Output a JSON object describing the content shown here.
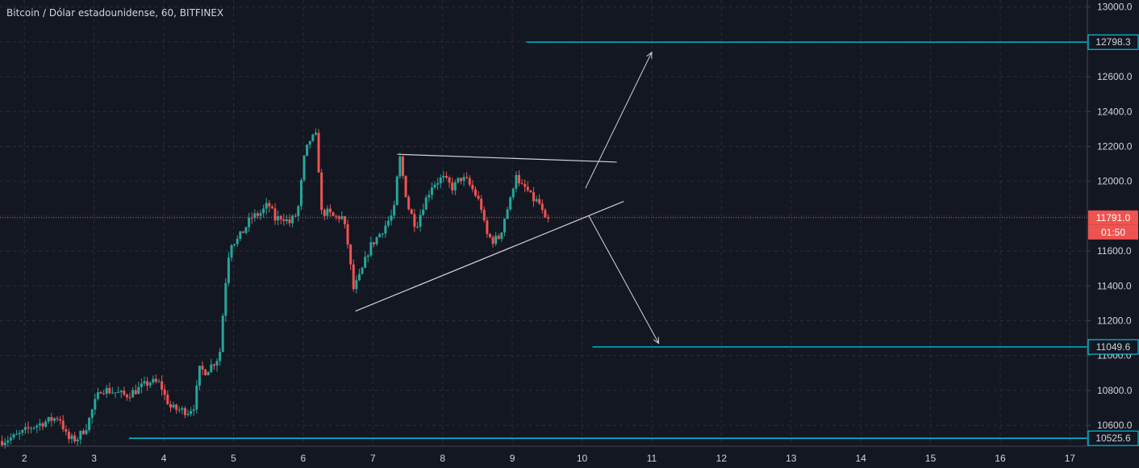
{
  "header": {
    "title": "Bitcoin / Dólar estadounidense, 60, BITFINEX"
  },
  "colors": {
    "background": "#131722",
    "grid": "#2a2e39",
    "axis_text": "#d1d4dc",
    "up": "#26a69a",
    "down": "#ef5350",
    "level_line": "#00e5ff",
    "trend_line": "#d1d4dc",
    "last_price_bg": "#ef5350"
  },
  "chart_data": {
    "type": "candlestick",
    "symbol": "Bitcoin / Dólar estadounidense",
    "interval": "60",
    "exchange": "BITFINEX",
    "ylim": [
      10480,
      13040
    ],
    "xlim": [
      1.65,
      17.25
    ],
    "x_ticks": [
      "2",
      "3",
      "4",
      "5",
      "6",
      "7",
      "8",
      "9",
      "10",
      "11",
      "12",
      "13",
      "14",
      "15",
      "16",
      "17"
    ],
    "y_ticks": [
      10600,
      10800,
      11000,
      11200,
      11400,
      11600,
      11800,
      12000,
      12200,
      12400,
      12600,
      12800,
      13000
    ],
    "y_tick_labels": [
      "10600.0",
      "10800.0",
      "11000.0",
      "11200.0",
      "11400.0",
      "11600.0",
      "11800.0",
      "12000.0",
      "12200.0",
      "12400.0",
      "12600.0",
      "12800.0",
      "13000.0"
    ],
    "grid": true,
    "last_price": 11791.0,
    "last_price_label": "11791.0",
    "countdown_label": "01:50",
    "horizontal_levels": [
      {
        "value": 12798.3,
        "label": "12798.3",
        "x_start": 9.2
      },
      {
        "value": 11049.6,
        "label": "11049.6",
        "x_start": 10.15
      },
      {
        "value": 10525.6,
        "label": "10525.6",
        "x_start": 3.5
      }
    ],
    "trend_lines": [
      {
        "from": [
          7.35,
          12155
        ],
        "to": [
          10.5,
          12110
        ]
      },
      {
        "from": [
          6.75,
          11255
        ],
        "to": [
          10.6,
          11885
        ]
      }
    ],
    "arrows": [
      {
        "from": [
          10.05,
          11960
        ],
        "to": [
          11.0,
          12740
        ]
      },
      {
        "from": [
          10.1,
          11800
        ],
        "to": [
          11.1,
          11070
        ]
      }
    ],
    "candle_path": [
      [
        1.68,
        10510
      ],
      [
        1.9,
        10540
      ],
      [
        2.1,
        10590
      ],
      [
        2.3,
        10620
      ],
      [
        2.5,
        10650
      ],
      [
        2.62,
        10520
      ],
      [
        2.75,
        10520
      ],
      [
        2.9,
        10600
      ],
      [
        3.0,
        10720
      ],
      [
        3.1,
        10810
      ],
      [
        3.3,
        10790
      ],
      [
        3.45,
        10770
      ],
      [
        3.6,
        10800
      ],
      [
        3.8,
        10850
      ],
      [
        3.95,
        10840
      ],
      [
        4.0,
        10780
      ],
      [
        4.1,
        10700
      ],
      [
        4.2,
        10690
      ],
      [
        4.35,
        10680
      ],
      [
        4.45,
        10720
      ],
      [
        4.5,
        10920
      ],
      [
        4.6,
        10910
      ],
      [
        4.72,
        10960
      ],
      [
        4.8,
        11000
      ],
      [
        4.88,
        11400
      ],
      [
        4.95,
        11650
      ],
      [
        5.05,
        11660
      ],
      [
        5.15,
        11720
      ],
      [
        5.25,
        11790
      ],
      [
        5.4,
        11820
      ],
      [
        5.5,
        11870
      ],
      [
        5.6,
        11780
      ],
      [
        5.7,
        11800
      ],
      [
        5.8,
        11760
      ],
      [
        5.92,
        11820
      ],
      [
        6.02,
        12150
      ],
      [
        6.1,
        12240
      ],
      [
        6.2,
        12260
      ],
      [
        6.25,
        11820
      ],
      [
        6.35,
        11820
      ],
      [
        6.45,
        11790
      ],
      [
        6.55,
        11800
      ],
      [
        6.62,
        11700
      ],
      [
        6.72,
        11380
      ],
      [
        6.82,
        11460
      ],
      [
        6.95,
        11620
      ],
      [
        7.1,
        11700
      ],
      [
        7.2,
        11760
      ],
      [
        7.3,
        11820
      ],
      [
        7.38,
        12150
      ],
      [
        7.5,
        11860
      ],
      [
        7.62,
        11740
      ],
      [
        7.72,
        11860
      ],
      [
        7.85,
        11980
      ],
      [
        8.0,
        12020
      ],
      [
        8.15,
        11960
      ],
      [
        8.25,
        12020
      ],
      [
        8.35,
        12000
      ],
      [
        8.45,
        11940
      ],
      [
        8.55,
        11860
      ],
      [
        8.62,
        11700
      ],
      [
        8.72,
        11660
      ],
      [
        8.82,
        11680
      ],
      [
        8.9,
        11810
      ],
      [
        8.98,
        11900
      ],
      [
        9.05,
        12060
      ],
      [
        9.1,
        11970
      ],
      [
        9.2,
        11960
      ],
      [
        9.28,
        11900
      ],
      [
        9.38,
        11880
      ],
      [
        9.48,
        11760
      ],
      [
        9.55,
        11790
      ]
    ]
  }
}
